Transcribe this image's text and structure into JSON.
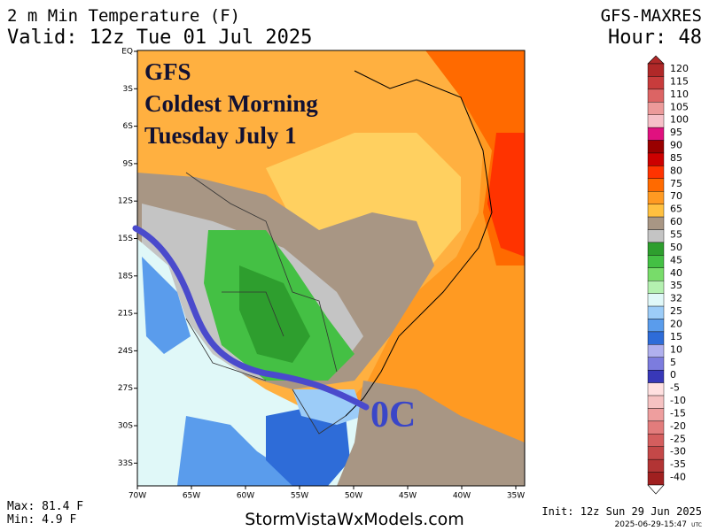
{
  "header": {
    "title": "2 m Min Temperature (F)",
    "valid": "Valid: 12z Tue 01 Jul 2025",
    "model": "GFS-MAXRES",
    "hour": "Hour: 48"
  },
  "map": {
    "latitudes": [
      "EQ",
      "3S",
      "6S",
      "9S",
      "12S",
      "15S",
      "18S",
      "21S",
      "24S",
      "27S",
      "30S",
      "33S"
    ],
    "longitudes": [
      "70W",
      "65W",
      "60W",
      "55W",
      "50W",
      "45W",
      "40W",
      "35W"
    ],
    "annotation": {
      "lines": [
        "GFS",
        "Coldest Morning",
        "Tuesday July 1"
      ],
      "marker": "0C"
    }
  },
  "legend": {
    "levels": [
      120,
      115,
      110,
      105,
      100,
      95,
      90,
      85,
      80,
      75,
      70,
      65,
      60,
      55,
      50,
      45,
      40,
      35,
      32,
      25,
      20,
      15,
      10,
      5,
      0,
      -5,
      -10,
      -15,
      -20,
      -25,
      -30,
      -35,
      -40
    ],
    "colors": [
      "#b02828",
      "#c83c3c",
      "#dc6464",
      "#ec9a9a",
      "#f6c0c8",
      "#e0117f",
      "#990000",
      "#cc0000",
      "#ff3300",
      "#ff6a00",
      "#ff9a22",
      "#ffc040",
      "#a89684",
      "#c4c4c4",
      "#2e9e2e",
      "#44c044",
      "#78dc6a",
      "#b4f0b0",
      "#e0f8f8",
      "#9cccf8",
      "#5a9cec",
      "#2e6cd8",
      "#b0b0ee",
      "#7c7cde",
      "#3838b8",
      "#ffe0e0",
      "#f6c2c2",
      "#ee9e9e",
      "#e27c7c",
      "#d45e5e",
      "#c44848",
      "#b23434",
      "#a02020"
    ]
  },
  "footer": {
    "max": "Max: 81.4 F",
    "min": "Min: 4.9 F",
    "site": "StormVistaWxModels.com",
    "init": "Init: 12z Sun 29 Jun 2025",
    "timestamp": "2025-06-29-15:47",
    "timestamp_unit": "UTC"
  }
}
